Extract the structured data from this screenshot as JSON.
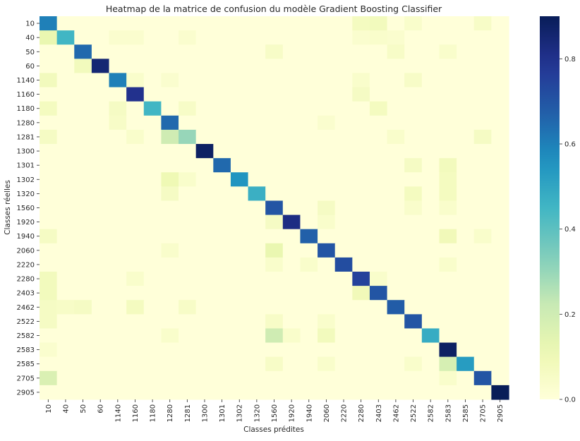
{
  "chart_data": {
    "type": "heatmap",
    "title": "Heatmap de la matrice de confusion du modèle Gradient Boosting Classifier",
    "xlabel": "Classes prédites",
    "ylabel": "Classes réelles",
    "categories": [
      "10",
      "40",
      "50",
      "60",
      "1140",
      "1160",
      "1180",
      "1280",
      "1281",
      "1300",
      "1301",
      "1302",
      "1320",
      "1560",
      "1920",
      "1940",
      "2060",
      "2220",
      "2280",
      "2403",
      "2462",
      "2522",
      "2582",
      "2583",
      "2585",
      "2705",
      "2905"
    ],
    "colormap": "YlGnBu",
    "vmin": 0.0,
    "vmax": 0.9,
    "colorbar_ticks": [
      "0.0",
      "0.2",
      "0.4",
      "0.6",
      "0.8"
    ],
    "colorbar_tick_values": [
      0.0,
      0.2,
      0.4,
      0.6,
      0.8
    ],
    "grid": false,
    "diagonal": [
      0.6,
      0.45,
      0.65,
      0.85,
      0.6,
      0.8,
      0.45,
      0.65,
      0.3,
      0.88,
      0.65,
      0.55,
      0.47,
      0.7,
      0.82,
      0.67,
      0.7,
      0.72,
      0.75,
      0.7,
      0.68,
      0.7,
      0.48,
      0.88,
      0.53,
      0.7,
      0.97
    ],
    "off_diagonal": [
      {
        "row": "10",
        "col": "2280",
        "value": 0.07
      },
      {
        "row": "10",
        "col": "2403",
        "value": 0.08
      },
      {
        "row": "10",
        "col": "2522",
        "value": 0.04
      },
      {
        "row": "10",
        "col": "2705",
        "value": 0.05
      },
      {
        "row": "40",
        "col": "10",
        "value": 0.12
      },
      {
        "row": "40",
        "col": "1140",
        "value": 0.03
      },
      {
        "row": "40",
        "col": "1160",
        "value": 0.03
      },
      {
        "row": "40",
        "col": "1281",
        "value": 0.03
      },
      {
        "row": "40",
        "col": "2280",
        "value": 0.03
      },
      {
        "row": "40",
        "col": "2403",
        "value": 0.04
      },
      {
        "row": "40",
        "col": "2462",
        "value": 0.03
      },
      {
        "row": "50",
        "col": "1560",
        "value": 0.05
      },
      {
        "row": "50",
        "col": "2462",
        "value": 0.05
      },
      {
        "row": "50",
        "col": "2583",
        "value": 0.04
      },
      {
        "row": "60",
        "col": "50",
        "value": 0.08
      },
      {
        "row": "1140",
        "col": "10",
        "value": 0.08
      },
      {
        "row": "1140",
        "col": "1160",
        "value": 0.04
      },
      {
        "row": "1140",
        "col": "1280",
        "value": 0.03
      },
      {
        "row": "1140",
        "col": "2280",
        "value": 0.04
      },
      {
        "row": "1140",
        "col": "2522",
        "value": 0.05
      },
      {
        "row": "1160",
        "col": "2280",
        "value": 0.06
      },
      {
        "row": "1180",
        "col": "10",
        "value": 0.07
      },
      {
        "row": "1180",
        "col": "1140",
        "value": 0.06
      },
      {
        "row": "1180",
        "col": "1281",
        "value": 0.05
      },
      {
        "row": "1180",
        "col": "2403",
        "value": 0.07
      },
      {
        "row": "1280",
        "col": "1140",
        "value": 0.05
      },
      {
        "row": "1280",
        "col": "2060",
        "value": 0.03
      },
      {
        "row": "1281",
        "col": "10",
        "value": 0.06
      },
      {
        "row": "1281",
        "col": "1160",
        "value": 0.04
      },
      {
        "row": "1281",
        "col": "1280",
        "value": 0.2
      },
      {
        "row": "1281",
        "col": "2705",
        "value": 0.06
      },
      {
        "row": "1281",
        "col": "2462",
        "value": 0.04
      },
      {
        "row": "1301",
        "col": "2522",
        "value": 0.06
      },
      {
        "row": "1301",
        "col": "2583",
        "value": 0.08
      },
      {
        "row": "1302",
        "col": "1280",
        "value": 0.1
      },
      {
        "row": "1302",
        "col": "1281",
        "value": 0.04
      },
      {
        "row": "1302",
        "col": "2583",
        "value": 0.07
      },
      {
        "row": "1320",
        "col": "1280",
        "value": 0.06
      },
      {
        "row": "1320",
        "col": "2522",
        "value": 0.07
      },
      {
        "row": "1320",
        "col": "2583",
        "value": 0.07
      },
      {
        "row": "1560",
        "col": "2060",
        "value": 0.06
      },
      {
        "row": "1560",
        "col": "2522",
        "value": 0.04
      },
      {
        "row": "1560",
        "col": "2583",
        "value": 0.04
      },
      {
        "row": "1920",
        "col": "1560",
        "value": 0.06
      },
      {
        "row": "1920",
        "col": "2060",
        "value": 0.04
      },
      {
        "row": "1940",
        "col": "10",
        "value": 0.06
      },
      {
        "row": "1940",
        "col": "2583",
        "value": 0.09
      },
      {
        "row": "1940",
        "col": "2705",
        "value": 0.04
      },
      {
        "row": "2060",
        "col": "1560",
        "value": 0.12
      },
      {
        "row": "2060",
        "col": "1280",
        "value": 0.04
      },
      {
        "row": "2220",
        "col": "1560",
        "value": 0.04
      },
      {
        "row": "2220",
        "col": "1940",
        "value": 0.04
      },
      {
        "row": "2220",
        "col": "2583",
        "value": 0.04
      },
      {
        "row": "2280",
        "col": "10",
        "value": 0.08
      },
      {
        "row": "2280",
        "col": "1160",
        "value": 0.04
      },
      {
        "row": "2280",
        "col": "2403",
        "value": 0.04
      },
      {
        "row": "2403",
        "col": "10",
        "value": 0.08
      },
      {
        "row": "2403",
        "col": "2280",
        "value": 0.09
      },
      {
        "row": "2462",
        "col": "10",
        "value": 0.06
      },
      {
        "row": "2462",
        "col": "40",
        "value": 0.05
      },
      {
        "row": "2462",
        "col": "50",
        "value": 0.06
      },
      {
        "row": "2462",
        "col": "1160",
        "value": 0.07
      },
      {
        "row": "2462",
        "col": "1281",
        "value": 0.05
      },
      {
        "row": "2522",
        "col": "10",
        "value": 0.06
      },
      {
        "row": "2522",
        "col": "1560",
        "value": 0.05
      },
      {
        "row": "2522",
        "col": "2060",
        "value": 0.04
      },
      {
        "row": "2582",
        "col": "1560",
        "value": 0.2
      },
      {
        "row": "2582",
        "col": "2060",
        "value": 0.08
      },
      {
        "row": "2582",
        "col": "1280",
        "value": 0.04
      },
      {
        "row": "2582",
        "col": "1920",
        "value": 0.04
      },
      {
        "row": "2583",
        "col": "10",
        "value": 0.03
      },
      {
        "row": "2585",
        "col": "2583",
        "value": 0.18
      },
      {
        "row": "2585",
        "col": "1560",
        "value": 0.05
      },
      {
        "row": "2585",
        "col": "2060",
        "value": 0.04
      },
      {
        "row": "2585",
        "col": "2522",
        "value": 0.04
      },
      {
        "row": "2705",
        "col": "10",
        "value": 0.17
      },
      {
        "row": "2705",
        "col": "2583",
        "value": 0.04
      }
    ]
  }
}
